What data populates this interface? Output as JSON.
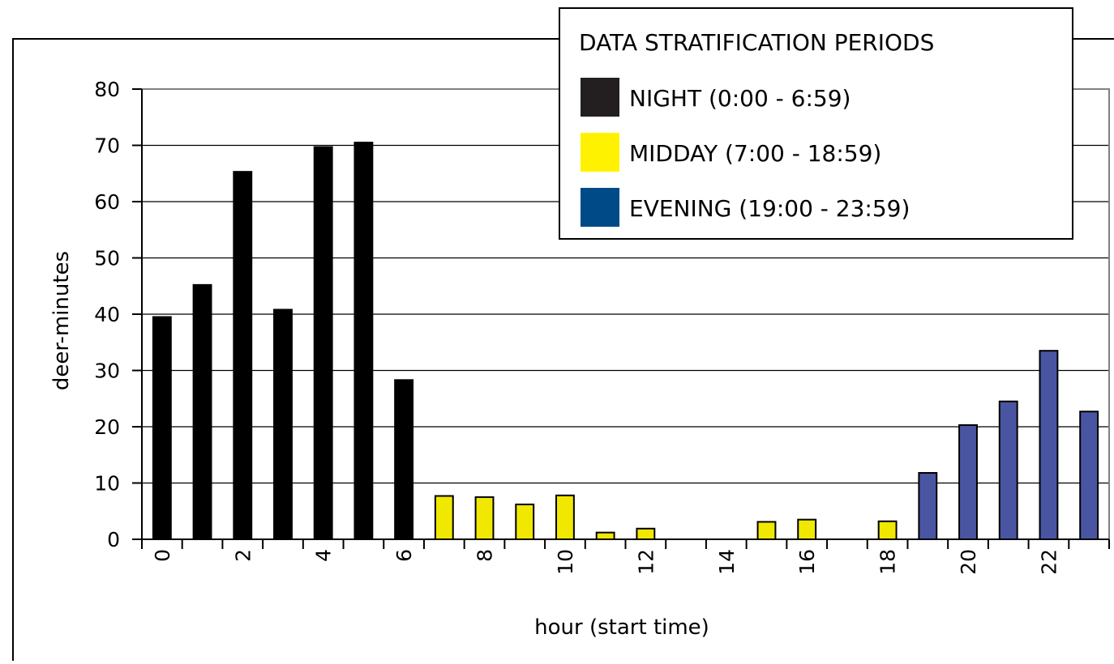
{
  "chart_data": {
    "type": "bar",
    "title": "",
    "xlabel": "hour (start time)",
    "ylabel": "deer-minutes",
    "ylim": [
      0,
      80
    ],
    "yticks": [
      0,
      10,
      20,
      30,
      40,
      50,
      60,
      70,
      80
    ],
    "grid": true,
    "categories": [
      0,
      1,
      2,
      3,
      4,
      5,
      6,
      7,
      8,
      9,
      10,
      11,
      12,
      13,
      14,
      15,
      16,
      17,
      18,
      19,
      20,
      21,
      22,
      23
    ],
    "x_tick_labels": [
      "0",
      "2",
      "4",
      "6",
      "8",
      "10",
      "12",
      "14",
      "16",
      "18",
      "20",
      "22"
    ],
    "values": [
      39.5,
      45.2,
      65.3,
      40.8,
      69.7,
      70.5,
      28.3,
      7.7,
      7.5,
      6.2,
      7.8,
      1.2,
      1.9,
      0,
      0,
      3.1,
      3.5,
      0,
      3.2,
      11.8,
      20.3,
      24.5,
      33.5,
      22.7
    ],
    "periods": [
      {
        "name": "NIGHT (0:00 - 6:59)",
        "start": 0,
        "end": 6,
        "color": "#231f20",
        "bar_color": "#000000"
      },
      {
        "name": "MIDDAY (7:00 - 18:59)",
        "start": 7,
        "end": 18,
        "color": "#fff200",
        "bar_color": "#f0e800"
      },
      {
        "name": "EVENING (19:00 - 23:59)",
        "start": 19,
        "end": 23,
        "color": "#004a87",
        "bar_color": "#4a55a2"
      }
    ],
    "legend": {
      "title": "DATA STRATIFICATION PERIODS",
      "placement": "top-right"
    }
  }
}
